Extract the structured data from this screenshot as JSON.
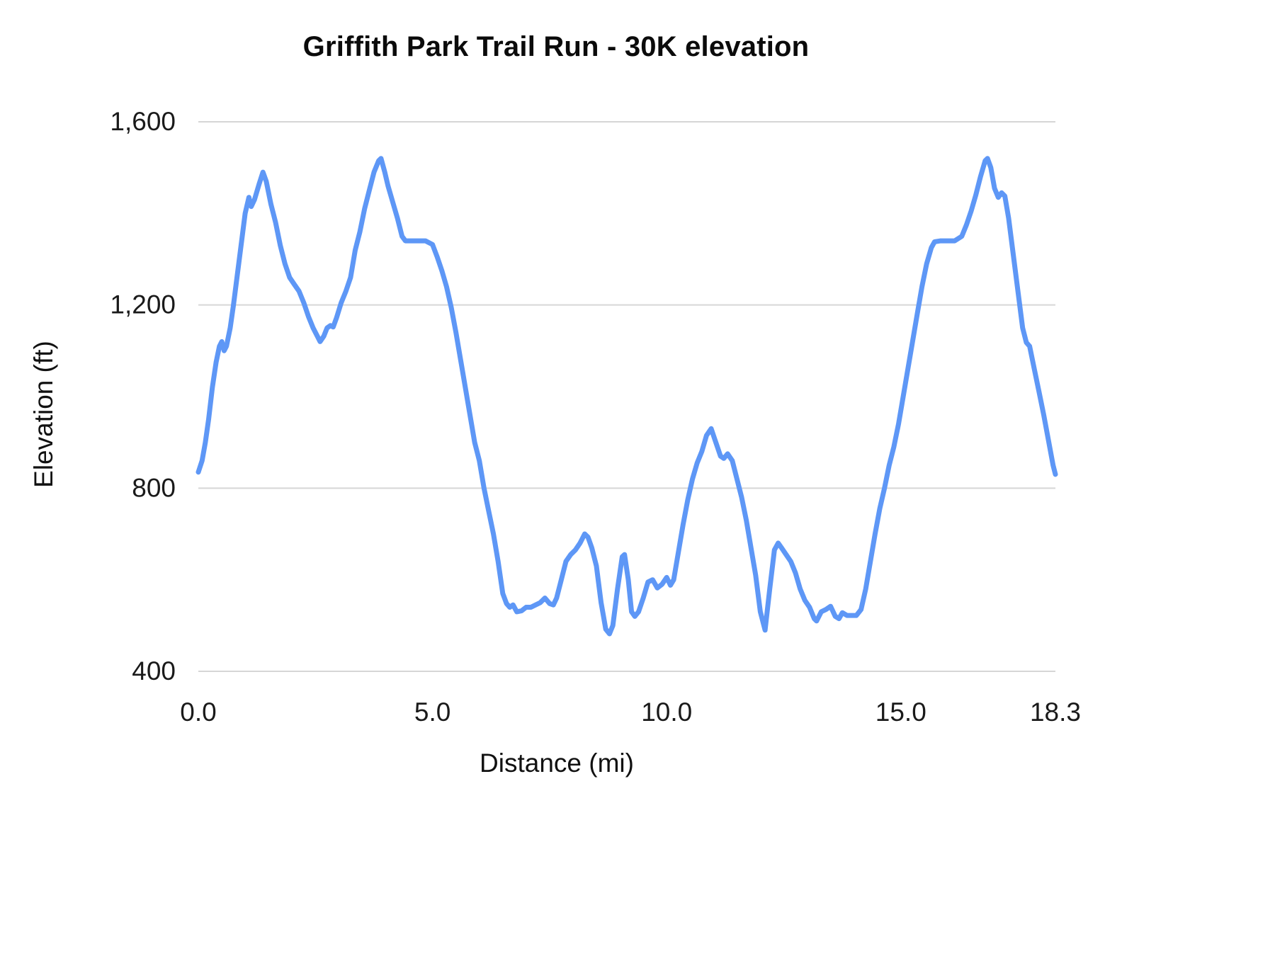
{
  "chart_data": {
    "type": "line",
    "title": "Griffith Park Trail Run - 30K elevation",
    "xlabel": "Distance (mi)",
    "ylabel": "Elevation (ft)",
    "xlim": [
      0,
      18.3
    ],
    "ylim": [
      400,
      1600
    ],
    "grid": "horizontal",
    "legend": "none",
    "line_color": "#5e97f6",
    "grid_color": "#d6d6d6",
    "x_ticks": [
      {
        "value": 0.0,
        "label": "0.0"
      },
      {
        "value": 5.0,
        "label": "5.0"
      },
      {
        "value": 10.0,
        "label": "10.0"
      },
      {
        "value": 15.0,
        "label": "15.0"
      },
      {
        "value": 18.3,
        "label": "18.3"
      }
    ],
    "y_ticks": [
      {
        "value": 400,
        "label": "400"
      },
      {
        "value": 800,
        "label": "800"
      },
      {
        "value": 1200,
        "label": "1,200"
      },
      {
        "value": 1600,
        "label": "1,600"
      }
    ],
    "points": [
      [
        0.0,
        835
      ],
      [
        0.08,
        860
      ],
      [
        0.15,
        900
      ],
      [
        0.22,
        950
      ],
      [
        0.3,
        1020
      ],
      [
        0.38,
        1075
      ],
      [
        0.45,
        1110
      ],
      [
        0.5,
        1120
      ],
      [
        0.55,
        1100
      ],
      [
        0.6,
        1110
      ],
      [
        0.68,
        1150
      ],
      [
        0.75,
        1200
      ],
      [
        0.85,
        1280
      ],
      [
        0.95,
        1360
      ],
      [
        1.0,
        1400
      ],
      [
        1.08,
        1435
      ],
      [
        1.13,
        1415
      ],
      [
        1.2,
        1430
      ],
      [
        1.3,
        1465
      ],
      [
        1.38,
        1490
      ],
      [
        1.45,
        1470
      ],
      [
        1.55,
        1420
      ],
      [
        1.65,
        1380
      ],
      [
        1.75,
        1330
      ],
      [
        1.85,
        1290
      ],
      [
        1.95,
        1260
      ],
      [
        2.05,
        1245
      ],
      [
        2.15,
        1230
      ],
      [
        2.25,
        1205
      ],
      [
        2.35,
        1175
      ],
      [
        2.45,
        1150
      ],
      [
        2.55,
        1130
      ],
      [
        2.6,
        1120
      ],
      [
        2.68,
        1132
      ],
      [
        2.75,
        1150
      ],
      [
        2.82,
        1155
      ],
      [
        2.88,
        1152
      ],
      [
        2.95,
        1172
      ],
      [
        3.05,
        1205
      ],
      [
        3.15,
        1230
      ],
      [
        3.25,
        1260
      ],
      [
        3.35,
        1320
      ],
      [
        3.45,
        1360
      ],
      [
        3.55,
        1410
      ],
      [
        3.65,
        1450
      ],
      [
        3.75,
        1490
      ],
      [
        3.85,
        1515
      ],
      [
        3.9,
        1520
      ],
      [
        3.98,
        1490
      ],
      [
        4.05,
        1460
      ],
      [
        4.15,
        1425
      ],
      [
        4.25,
        1390
      ],
      [
        4.35,
        1350
      ],
      [
        4.42,
        1340
      ],
      [
        4.55,
        1340
      ],
      [
        4.7,
        1340
      ],
      [
        4.85,
        1340
      ],
      [
        5.0,
        1332
      ],
      [
        5.1,
        1305
      ],
      [
        5.2,
        1275
      ],
      [
        5.3,
        1240
      ],
      [
        5.4,
        1195
      ],
      [
        5.5,
        1140
      ],
      [
        5.6,
        1080
      ],
      [
        5.7,
        1020
      ],
      [
        5.8,
        960
      ],
      [
        5.9,
        900
      ],
      [
        6.0,
        860
      ],
      [
        6.1,
        800
      ],
      [
        6.2,
        750
      ],
      [
        6.3,
        700
      ],
      [
        6.4,
        640
      ],
      [
        6.5,
        570
      ],
      [
        6.58,
        548
      ],
      [
        6.65,
        540
      ],
      [
        6.72,
        545
      ],
      [
        6.8,
        530
      ],
      [
        6.9,
        532
      ],
      [
        7.0,
        540
      ],
      [
        7.1,
        540
      ],
      [
        7.2,
        545
      ],
      [
        7.3,
        550
      ],
      [
        7.4,
        560
      ],
      [
        7.5,
        548
      ],
      [
        7.58,
        545
      ],
      [
        7.65,
        560
      ],
      [
        7.75,
        600
      ],
      [
        7.85,
        640
      ],
      [
        7.95,
        655
      ],
      [
        8.05,
        665
      ],
      [
        8.15,
        680
      ],
      [
        8.25,
        700
      ],
      [
        8.32,
        693
      ],
      [
        8.4,
        670
      ],
      [
        8.5,
        630
      ],
      [
        8.6,
        550
      ],
      [
        8.7,
        492
      ],
      [
        8.78,
        482
      ],
      [
        8.85,
        500
      ],
      [
        8.95,
        580
      ],
      [
        9.05,
        650
      ],
      [
        9.1,
        655
      ],
      [
        9.18,
        600
      ],
      [
        9.25,
        530
      ],
      [
        9.32,
        520
      ],
      [
        9.4,
        530
      ],
      [
        9.5,
        560
      ],
      [
        9.6,
        595
      ],
      [
        9.7,
        600
      ],
      [
        9.8,
        582
      ],
      [
        9.9,
        590
      ],
      [
        10.0,
        605
      ],
      [
        10.08,
        588
      ],
      [
        10.15,
        600
      ],
      [
        10.25,
        660
      ],
      [
        10.35,
        720
      ],
      [
        10.45,
        775
      ],
      [
        10.55,
        820
      ],
      [
        10.65,
        855
      ],
      [
        10.75,
        880
      ],
      [
        10.85,
        915
      ],
      [
        10.95,
        930
      ],
      [
        11.05,
        900
      ],
      [
        11.15,
        870
      ],
      [
        11.22,
        865
      ],
      [
        11.3,
        875
      ],
      [
        11.4,
        860
      ],
      [
        11.5,
        820
      ],
      [
        11.6,
        780
      ],
      [
        11.7,
        730
      ],
      [
        11.8,
        670
      ],
      [
        11.9,
        610
      ],
      [
        12.0,
        530
      ],
      [
        12.1,
        490
      ],
      [
        12.2,
        580
      ],
      [
        12.3,
        665
      ],
      [
        12.38,
        680
      ],
      [
        12.45,
        670
      ],
      [
        12.55,
        655
      ],
      [
        12.65,
        640
      ],
      [
        12.75,
        615
      ],
      [
        12.85,
        580
      ],
      [
        12.95,
        555
      ],
      [
        13.05,
        540
      ],
      [
        13.15,
        515
      ],
      [
        13.2,
        510
      ],
      [
        13.3,
        530
      ],
      [
        13.4,
        535
      ],
      [
        13.5,
        542
      ],
      [
        13.6,
        520
      ],
      [
        13.68,
        515
      ],
      [
        13.75,
        528
      ],
      [
        13.85,
        522
      ],
      [
        13.95,
        522
      ],
      [
        14.05,
        522
      ],
      [
        14.15,
        535
      ],
      [
        14.25,
        580
      ],
      [
        14.35,
        640
      ],
      [
        14.45,
        700
      ],
      [
        14.55,
        755
      ],
      [
        14.65,
        800
      ],
      [
        14.75,
        850
      ],
      [
        14.85,
        890
      ],
      [
        14.95,
        940
      ],
      [
        15.05,
        1000
      ],
      [
        15.15,
        1060
      ],
      [
        15.25,
        1120
      ],
      [
        15.35,
        1180
      ],
      [
        15.45,
        1240
      ],
      [
        15.55,
        1290
      ],
      [
        15.65,
        1325
      ],
      [
        15.72,
        1338
      ],
      [
        15.85,
        1340
      ],
      [
        16.0,
        1340
      ],
      [
        16.15,
        1340
      ],
      [
        16.3,
        1350
      ],
      [
        16.4,
        1375
      ],
      [
        16.5,
        1405
      ],
      [
        16.6,
        1440
      ],
      [
        16.7,
        1480
      ],
      [
        16.8,
        1515
      ],
      [
        16.85,
        1520
      ],
      [
        16.92,
        1500
      ],
      [
        17.0,
        1455
      ],
      [
        17.08,
        1435
      ],
      [
        17.15,
        1445
      ],
      [
        17.22,
        1438
      ],
      [
        17.3,
        1390
      ],
      [
        17.4,
        1310
      ],
      [
        17.5,
        1230
      ],
      [
        17.6,
        1150
      ],
      [
        17.68,
        1118
      ],
      [
        17.75,
        1110
      ],
      [
        17.85,
        1060
      ],
      [
        17.95,
        1010
      ],
      [
        18.05,
        960
      ],
      [
        18.15,
        905
      ],
      [
        18.25,
        850
      ],
      [
        18.3,
        830
      ]
    ]
  }
}
